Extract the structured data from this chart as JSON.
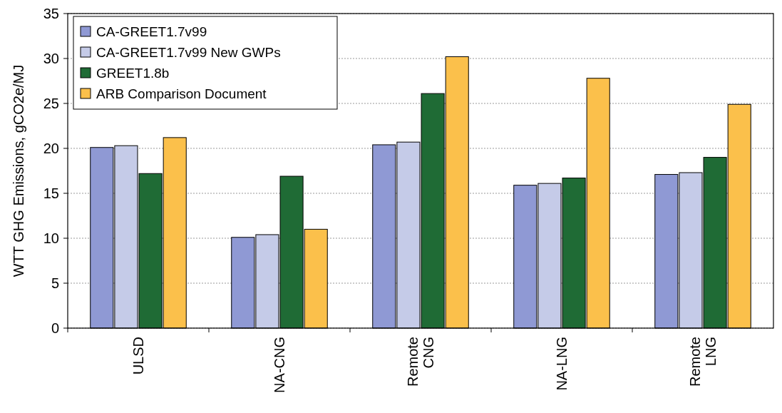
{
  "chart_data": {
    "type": "bar",
    "ylabel": "WTT GHG Emissions, gCO2e/MJ",
    "categories": [
      "ULSD",
      "NA-CNG",
      "Remote CNG",
      "NA-LNG",
      "Remote LNG"
    ],
    "series": [
      {
        "name": "CA-GREET1.7v99",
        "color": "#8f99d4",
        "values": [
          20.1,
          10.1,
          20.4,
          15.9,
          17.1
        ]
      },
      {
        "name": "CA-GREET1.7v99 New GWPs",
        "color": "#c5cbe8",
        "values": [
          20.3,
          10.4,
          20.7,
          16.1,
          17.3
        ]
      },
      {
        "name": "GREET1.8b",
        "color": "#1f6b35",
        "values": [
          17.2,
          16.9,
          26.1,
          16.7,
          19.0
        ]
      },
      {
        "name": "ARB Comparison Document",
        "color": "#fbc04b",
        "values": [
          21.2,
          11.0,
          30.2,
          27.8,
          24.9
        ]
      }
    ],
    "ylim": [
      0,
      35
    ],
    "yticks": [
      0,
      5,
      10,
      15,
      20,
      25,
      30,
      35
    ],
    "grid": "y",
    "legend": "top left"
  }
}
